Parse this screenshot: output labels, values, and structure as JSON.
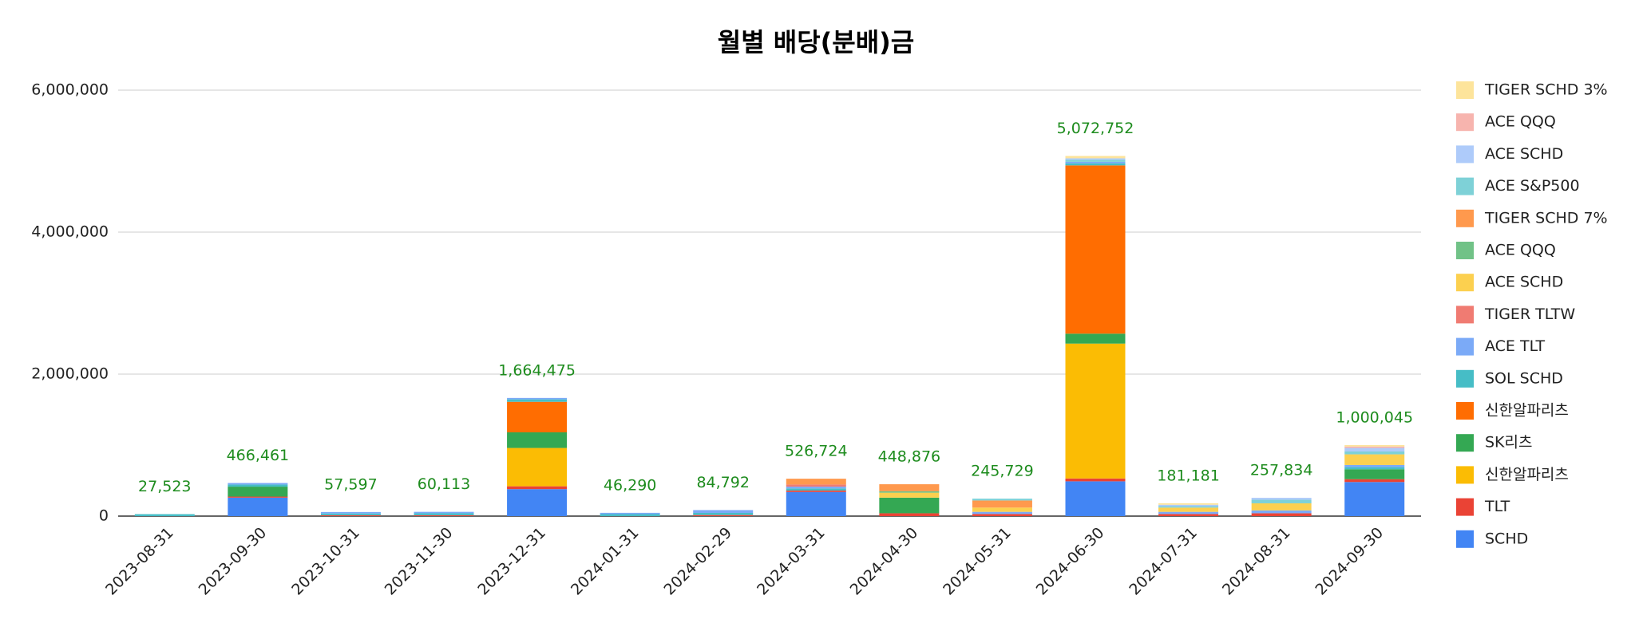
{
  "chart_data": {
    "type": "stacked_bar",
    "title": "월별 배당(분배)금",
    "categories": [
      "2023-08-31",
      "2023-09-30",
      "2023-10-31",
      "2023-11-30",
      "2023-12-31",
      "2024-01-31",
      "2024-02-29",
      "2024-03-31",
      "2024-04-30",
      "2024-05-31",
      "2024-06-30",
      "2024-07-31",
      "2024-08-31",
      "2024-09-30"
    ],
    "series": [
      {
        "name": "SCHD",
        "color": "#4285f4",
        "values": [
          0,
          260000,
          0,
          0,
          380000,
          0,
          0,
          340000,
          0,
          0,
          490000,
          0,
          0,
          480000
        ]
      },
      {
        "name": "TLT",
        "color": "#ea4335",
        "values": [
          0,
          15000,
          12000,
          12000,
          40000,
          0,
          15000,
          20000,
          40000,
          30000,
          40000,
          30000,
          40000,
          40000
        ]
      },
      {
        "name": "신한알파리츠",
        "color": "#fbbc04",
        "values": [
          0,
          0,
          0,
          0,
          540000,
          0,
          0,
          0,
          0,
          0,
          1900000,
          0,
          0,
          0
        ]
      },
      {
        "name": "SK리츠",
        "color": "#34a853",
        "values": [
          0,
          140000,
          0,
          0,
          220000,
          0,
          0,
          0,
          220000,
          0,
          140000,
          0,
          0,
          140000
        ]
      },
      {
        "name": "신한알파리츠",
        "color": "#ff6d01",
        "values": [
          0,
          0,
          0,
          0,
          430000,
          0,
          0,
          0,
          0,
          0,
          2370000,
          0,
          0,
          0
        ]
      },
      {
        "name": "SOL SCHD",
        "color": "#46bdc6",
        "values": [
          27523,
          30000,
          25000,
          28000,
          34475,
          28000,
          30000,
          30000,
          0,
          0,
          30000,
          0,
          0,
          30000
        ]
      },
      {
        "name": "ACE TLT",
        "color": "#7baaf7",
        "values": [
          0,
          21461,
          20597,
          20113,
          20000,
          18290,
          39792,
          25000,
          0,
          30000,
          20000,
          30000,
          40000,
          30000
        ]
      },
      {
        "name": "TIGER TLTW",
        "color": "#f07b72",
        "values": [
          0,
          0,
          0,
          0,
          0,
          0,
          0,
          30000,
          0,
          0,
          0,
          0,
          0,
          0
        ]
      },
      {
        "name": "ACE SCHD",
        "color": "#fcd04f",
        "values": [
          0,
          0,
          0,
          0,
          0,
          0,
          0,
          0,
          70000,
          60000,
          0,
          60000,
          100000,
          150000
        ]
      },
      {
        "name": "ACE QQQ",
        "color": "#71c287",
        "values": [
          0,
          0,
          0,
          0,
          0,
          0,
          0,
          0,
          20000,
          0,
          0,
          0,
          0,
          0
        ]
      },
      {
        "name": "TIGER SCHD 7%",
        "color": "#ff994d",
        "values": [
          0,
          0,
          0,
          0,
          0,
          0,
          0,
          81724,
          98876,
          100000,
          0,
          0,
          0,
          0
        ]
      },
      {
        "name": "ACE S&P500",
        "color": "#7ed1d7",
        "values": [
          0,
          0,
          0,
          0,
          0,
          0,
          0,
          0,
          0,
          25729,
          30000,
          20000,
          50000,
          40000
        ]
      },
      {
        "name": "ACE SCHD",
        "color": "#aecbfa",
        "values": [
          0,
          0,
          0,
          0,
          0,
          0,
          0,
          0,
          0,
          0,
          20000,
          20000,
          27834,
          50000
        ]
      },
      {
        "name": "ACE QQQ",
        "color": "#f7b4ae",
        "values": [
          0,
          0,
          0,
          0,
          0,
          0,
          0,
          0,
          0,
          0,
          0,
          0,
          0,
          20000
        ]
      },
      {
        "name": "TIGER SCHD 3%",
        "color": "#fde49b",
        "values": [
          0,
          0,
          0,
          0,
          0,
          0,
          0,
          0,
          0,
          0,
          32752,
          21181,
          0,
          20045
        ]
      }
    ],
    "totals": [
      27523,
      466461,
      57597,
      60113,
      1664475,
      46290,
      84792,
      526724,
      448876,
      245729,
      5072752,
      181181,
      257834,
      1000045
    ],
    "total_labels": [
      "27,523",
      "466,461",
      "57,597",
      "60,113",
      "1,664,475",
      "46,290",
      "84,792",
      "526,724",
      "448,876",
      "245,729",
      "5,072,752",
      "181,181",
      "257,834",
      "1,000,045"
    ],
    "total_label_color": "#1e8c1e",
    "ylim": [
      0,
      6000000
    ],
    "yticks": [
      0,
      {
        "value": 2000000,
        "label": "2,000,000"
      },
      {
        "value": 4000000,
        "label": "4,000,000"
      },
      {
        "value": 6000000,
        "label": "6,000,000"
      }
    ],
    "grid": true,
    "legend": "right"
  }
}
